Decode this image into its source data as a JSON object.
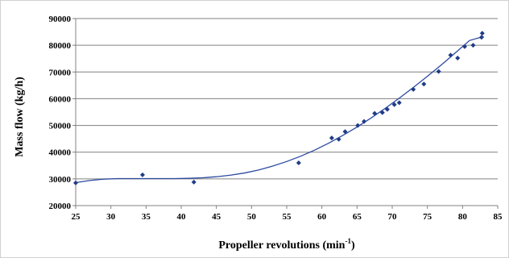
{
  "chart_data": {
    "type": "scatter",
    "xlabel_main": "Propeller revolutions (min",
    "xlabel_sup": "-1",
    "xlabel_close": ")",
    "ylabel": "Mass flow (kg/h)",
    "xlim": [
      25,
      85
    ],
    "ylim": [
      20000,
      90000
    ],
    "x_ticks": [
      25,
      30,
      35,
      40,
      45,
      50,
      55,
      60,
      65,
      70,
      75,
      80,
      85
    ],
    "y_ticks": [
      20000,
      30000,
      40000,
      50000,
      60000,
      70000,
      80000,
      90000
    ],
    "grid": "horizontal",
    "legend": "none",
    "series": [
      {
        "marker": "diamond",
        "x": [
          25.0,
          34.5,
          41.8,
          56.7,
          61.4,
          62.4,
          63.3,
          65.1,
          66.0,
          67.5,
          68.6,
          69.3,
          70.3,
          71.0,
          73.0,
          74.5,
          76.6,
          78.3,
          79.3,
          80.3,
          81.5,
          82.7,
          82.8
        ],
        "y": [
          28500,
          31500,
          28800,
          36000,
          45300,
          44800,
          47700,
          50000,
          51500,
          54500,
          54800,
          56000,
          57800,
          58500,
          63500,
          65500,
          70200,
          76300,
          75200,
          79500,
          80000,
          83000,
          84500
        ]
      }
    ],
    "trendline": {
      "x": [
        25,
        27,
        29,
        31,
        33,
        35,
        37,
        39,
        41,
        43,
        45,
        47,
        49,
        51,
        53,
        55,
        57,
        59,
        61,
        63,
        65,
        67,
        69,
        71,
        73,
        75,
        77,
        79,
        81,
        83
      ],
      "y": [
        28600,
        29400,
        29900,
        30100,
        30100,
        30100,
        30100,
        30100,
        30200,
        30400,
        30800,
        31400,
        32200,
        33300,
        34800,
        36500,
        38500,
        40800,
        43400,
        46300,
        49400,
        52800,
        56400,
        60200,
        64200,
        68400,
        72700,
        77200,
        81800,
        83300
      ]
    },
    "colors": {
      "marker": "#1f3c88",
      "line": "#2b4aa0",
      "grid": "#808080",
      "background": "#ffffff"
    }
  }
}
